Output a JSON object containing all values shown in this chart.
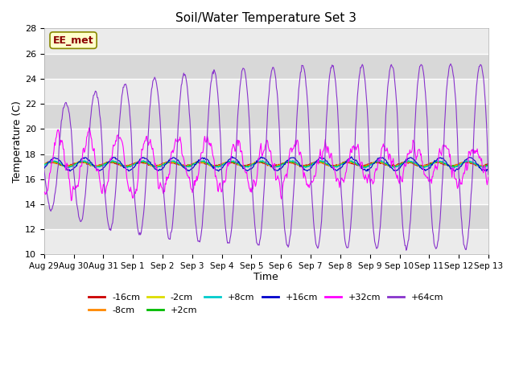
{
  "title": "Soil/Water Temperature Set 3",
  "xlabel": "Time",
  "ylabel": "Temperature (C)",
  "ylim": [
    10,
    28
  ],
  "annotation_text": "EE_met",
  "background_color": "#ffffff",
  "plot_bg_color": "#e0e0e0",
  "grid_color": "#f5f5f5",
  "series": [
    {
      "label": "-16cm",
      "color": "#cc0000"
    },
    {
      "label": "-8cm",
      "color": "#ff8800"
    },
    {
      "label": "-2cm",
      "color": "#dddd00"
    },
    {
      "label": "+2cm",
      "color": "#00bb00"
    },
    {
      "label": "+8cm",
      "color": "#00cccc"
    },
    {
      "label": "+16cm",
      "color": "#0000cc"
    },
    {
      "label": "+32cm",
      "color": "#ff00ff"
    },
    {
      "label": "+64cm",
      "color": "#8833cc"
    }
  ],
  "xtick_labels": [
    "Aug 29",
    "Aug 30",
    "Aug 31",
    "Sep 1",
    "Sep 2",
    "Sep 3",
    "Sep 4",
    "Sep 5",
    "Sep 6",
    "Sep 7",
    "Sep 8",
    "Sep 9",
    "Sep 10",
    "Sep 11",
    "Sep 12",
    "Sep 13"
  ],
  "xtick_positions": [
    0,
    1,
    2,
    3,
    4,
    5,
    6,
    7,
    8,
    9,
    10,
    11,
    12,
    13,
    14,
    15
  ],
  "yticks": [
    10,
    12,
    14,
    16,
    18,
    20,
    22,
    24,
    26,
    28
  ],
  "base_temp": 17.2,
  "n_days": 15,
  "pts_per_day": 48
}
